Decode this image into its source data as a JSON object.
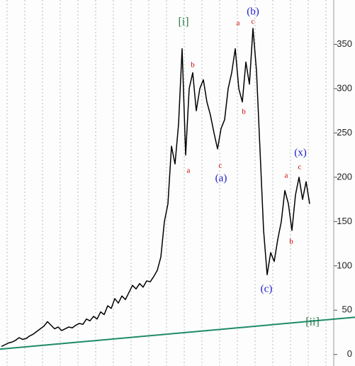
{
  "chart_data": {
    "type": "line",
    "ylim": [
      -13,
      400
    ],
    "yticks": [
      0,
      50,
      100,
      150,
      200,
      250,
      300,
      350
    ],
    "grid": true,
    "series": [
      {
        "color": "#000000",
        "values": [
          9,
          11,
          13,
          14,
          16,
          19,
          17,
          18,
          21,
          23,
          26,
          29,
          32,
          37,
          33,
          29,
          31,
          27,
          29,
          31,
          30,
          33,
          35,
          34,
          40,
          38,
          43,
          40,
          48,
          45,
          55,
          52,
          63,
          58,
          66,
          62,
          70,
          78,
          74,
          80,
          76,
          83,
          82,
          88,
          95,
          110,
          150,
          170,
          235,
          215,
          260,
          345,
          225,
          300,
          318,
          275,
          300,
          310,
          285,
          270,
          250,
          232,
          255,
          265,
          300,
          318,
          345,
          300,
          285,
          330,
          305,
          368,
          320,
          230,
          140,
          90,
          115,
          105,
          130,
          150,
          185,
          170,
          140,
          180,
          200,
          175,
          195,
          170
        ]
      }
    ],
    "trendline": {
      "color": "#1f8a6a",
      "values": [
        6,
        42
      ]
    },
    "annotations": [
      {
        "text": "[i]",
        "color": "#2a7a4a"
      },
      {
        "text": "b",
        "color": "#cc0000"
      },
      {
        "text": "a",
        "color": "#cc0000"
      },
      {
        "text": "c",
        "color": "#cc0000"
      },
      {
        "text": "(a)",
        "color": "#1a1acc"
      },
      {
        "text": "a",
        "color": "#cc0000"
      },
      {
        "text": "c",
        "color": "#cc0000"
      },
      {
        "text": "(b)",
        "color": "#1a1acc"
      },
      {
        "text": "b",
        "color": "#cc0000"
      },
      {
        "text": "(c)",
        "color": "#1a1acc"
      },
      {
        "text": "a",
        "color": "#cc0000"
      },
      {
        "text": "c",
        "color": "#cc0000"
      },
      {
        "text": "(x)",
        "color": "#1a1acc"
      },
      {
        "text": "b",
        "color": "#cc0000"
      },
      {
        "text": "[ii]",
        "color": "#2a7a4a"
      }
    ]
  }
}
